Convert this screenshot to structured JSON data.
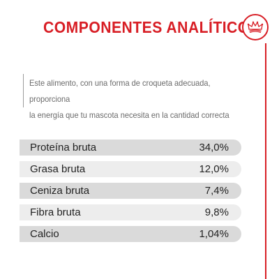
{
  "header": {
    "title": "COMPONENTES ANALÍTICOS",
    "logo_icon": "royal-crown-icon"
  },
  "description": {
    "line1": "Este alimento, con una forma de croqueta adecuada, proporciona",
    "line2": "la energía que tu mascota necesita en la cantidad correcta"
  },
  "components": [
    {
      "label": "Proteína bruta",
      "value": "34,0%"
    },
    {
      "label": "Grasa bruta",
      "value": "12,0%"
    },
    {
      "label": "Ceniza bruta",
      "value": "7,4%"
    },
    {
      "label": "Fibra bruta",
      "value": "9,8%"
    },
    {
      "label": "Calcio",
      "value": "1,04%"
    }
  ],
  "colors": {
    "accent": "#d81e25",
    "row_dark": "#dadada",
    "row_light": "#ededed",
    "text": "#222222",
    "muted_text": "#6a6a6a"
  }
}
